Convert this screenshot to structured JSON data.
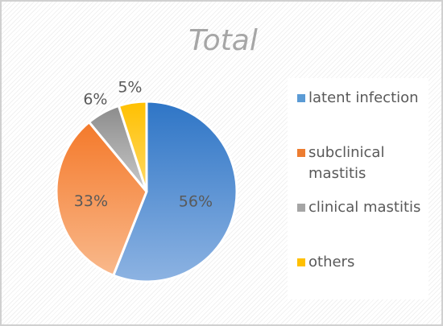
{
  "chart_data": {
    "type": "pie",
    "title": "Total",
    "legend_position": "right",
    "categories": [
      "latent infection",
      "subclinical mastitis",
      "clinical mastitis",
      "others"
    ],
    "values": [
      56,
      33,
      6,
      5
    ],
    "data_labels": [
      "56%",
      "33%",
      "6%",
      "5%"
    ],
    "colors": [
      "#5b9bd5",
      "#ed7d31",
      "#a5a5a5",
      "#ffc000"
    ]
  }
}
